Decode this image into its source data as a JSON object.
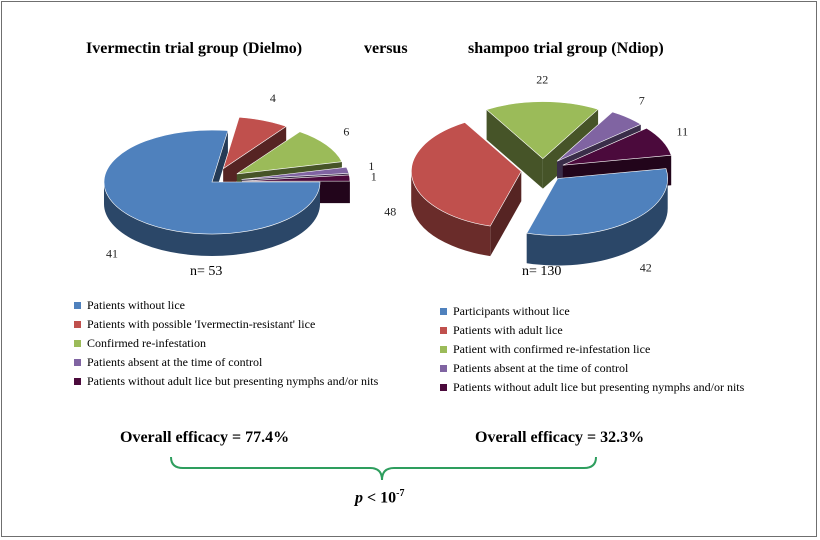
{
  "titles": {
    "left": "Ivermectin trial  group (Dielmo)",
    "middle": "versus",
    "right": "shampoo trial group (Ndiop)"
  },
  "chart_data": [
    {
      "type": "pie",
      "title": "Ivermectin trial  group (Dielmo)",
      "total_label": "n= 53",
      "categories": [
        "Patients without lice",
        "Patients with possible 'Ivermectin-resistant' lice",
        "Confirmed re-infestation",
        "Patients absent at the time of control",
        "Patients without adult lice but presenting  nymphs and/or nits"
      ],
      "values": [
        41,
        4,
        6,
        1,
        1
      ],
      "colors": [
        "#4f81bd",
        "#c0504d",
        "#9bbb59",
        "#8064a2",
        "#4b0a3c"
      ],
      "exploded_slices": [
        1,
        2,
        3,
        4
      ],
      "legend_position": "bottom",
      "efficacy": "Overall efficacy  = 77.4%"
    },
    {
      "type": "pie",
      "title": "shampoo trial group (Ndiop)",
      "total_label": "n= 130",
      "categories": [
        "Participants without lice",
        "Patients with adult lice",
        "Patient with confirmed re-infestation lice",
        "Patients absent at the time of control",
        "Patients without adult lice but presenting nymphs and/or nits"
      ],
      "values": [
        42,
        48,
        22,
        7,
        11
      ],
      "colors": [
        "#4f81bd",
        "#c0504d",
        "#9bbb59",
        "#8064a2",
        "#4b0a3c"
      ],
      "exploded_slices": [
        0,
        1,
        2,
        3,
        4
      ],
      "legend_position": "bottom",
      "efficacy": "Overall efficacy  = 32.3%"
    }
  ],
  "comparison": {
    "p_italic": "p",
    "p_rest": " < 10",
    "p_exponent": "-7",
    "brace_color": "#2e9e5e"
  }
}
